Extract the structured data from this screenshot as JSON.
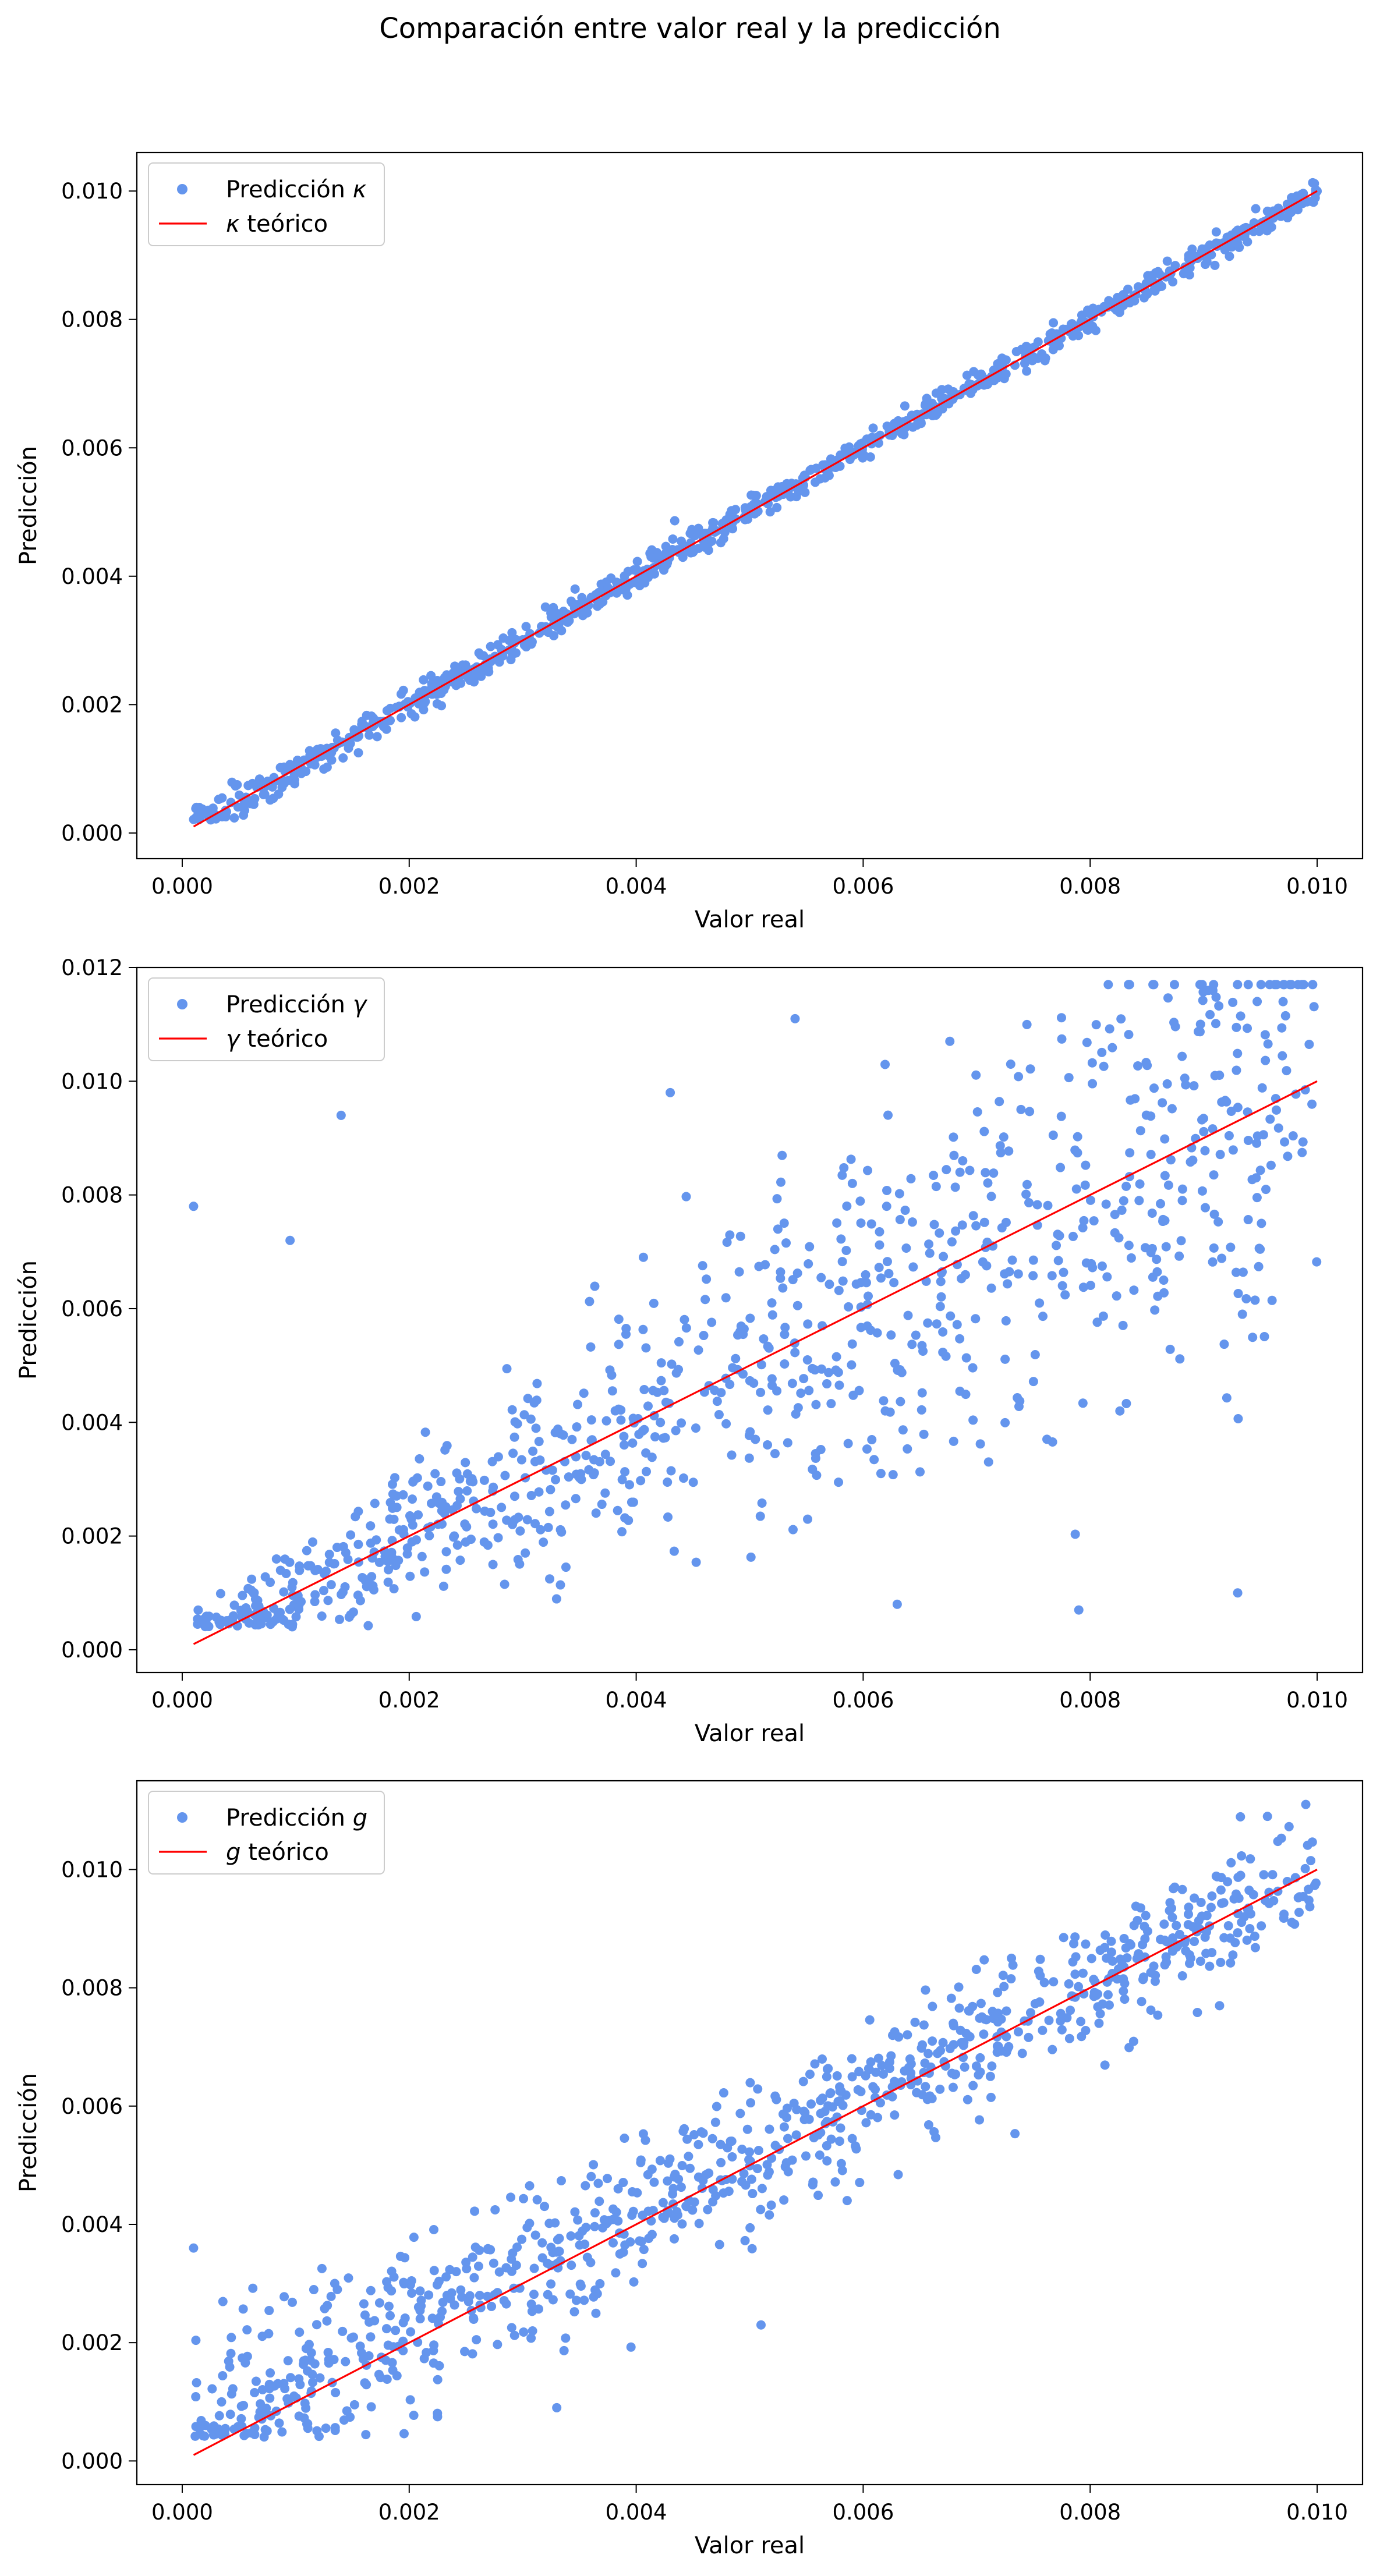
{
  "suptitle": "Comparación entre valor real y la predicción",
  "colors": {
    "points": "#6495ED",
    "line": "#FF0000"
  },
  "chart_data": [
    {
      "type": "scatter",
      "xlabel": "Valor real",
      "ylabel": "Predicción",
      "xlim": [
        -0.0004,
        0.0104
      ],
      "ylim": [
        -0.0004,
        0.0106
      ],
      "xticks": [
        "0.000",
        "0.002",
        "0.004",
        "0.006",
        "0.008",
        "0.010"
      ],
      "yticks": [
        "0.000",
        "0.002",
        "0.004",
        "0.006",
        "0.008",
        "0.010"
      ],
      "legend_position": "top-left",
      "series": [
        {
          "name": "Predicción κ",
          "legend_prefix": "Predicción ",
          "legend_symbol": "κ",
          "kind": "points",
          "generator": {
            "n": 900,
            "x_range": [
              0.0001,
              0.01
            ],
            "noise": [
              {
                "y": 0.0,
                "sd": 9e-05,
                "width": 4e-05
              }
            ],
            "outliers": [],
            "floor": 0.0002
          }
        },
        {
          "name": "κ teórico",
          "legend_prefix": "",
          "legend_symbol": "κ",
          "legend_suffix": " teórico",
          "kind": "line",
          "x": [
            0.0001,
            0.01
          ],
          "y": [
            0.0001,
            0.01
          ]
        }
      ]
    },
    {
      "type": "scatter",
      "xlabel": "Valor real",
      "ylabel": "Predicción",
      "xlim": [
        -0.0004,
        0.0104
      ],
      "ylim": [
        -0.0004,
        0.012
      ],
      "xticks": [
        "0.000",
        "0.002",
        "0.004",
        "0.006",
        "0.008",
        "0.010"
      ],
      "yticks": [
        "0.000",
        "0.002",
        "0.004",
        "0.006",
        "0.008",
        "0.010",
        "0.012"
      ],
      "legend_position": "top-left",
      "series": [
        {
          "name": "Predicción γ",
          "legend_prefix": "Predicción ",
          "legend_symbol": "γ",
          "kind": "points",
          "generator": {
            "n": 900,
            "x_range": [
              0.0001,
              0.01
            ],
            "noise": [
              {
                "y": 0.0,
                "sd": 0.0002,
                "width": 0.0016
              }
            ],
            "spread": 0.65,
            "outliers": [
              [
                0.0001,
                0.0078
              ],
              [
                0.00095,
                0.0072
              ],
              [
                0.0014,
                0.0094
              ],
              [
                0.0054,
                0.0111
              ],
              [
                0.0097,
                0.0114
              ],
              [
                0.0073,
                0.0103
              ],
              [
                0.0043,
                0.0098
              ],
              [
                0.0091,
                0.0101
              ],
              [
                0.0079,
                0.0007
              ],
              [
                0.0063,
                0.0008
              ],
              [
                0.0093,
                0.001
              ]
            ],
            "floor": 0.0004
          }
        },
        {
          "name": "γ teórico",
          "legend_prefix": "",
          "legend_symbol": "γ",
          "legend_suffix": " teórico",
          "kind": "line",
          "x": [
            0.0001,
            0.01
          ],
          "y": [
            0.0001,
            0.01
          ]
        }
      ]
    },
    {
      "type": "scatter",
      "xlabel": "Valor real",
      "ylabel": "Predicción",
      "xlim": [
        -0.0004,
        0.0104
      ],
      "ylim": [
        -0.0004,
        0.0115
      ],
      "xticks": [
        "0.000",
        "0.002",
        "0.004",
        "0.006",
        "0.008",
        "0.010"
      ],
      "yticks": [
        "0.000",
        "0.002",
        "0.004",
        "0.006",
        "0.008",
        "0.010"
      ],
      "legend_position": "top-left",
      "series": [
        {
          "name": "Predicción g",
          "legend_prefix": "Predicción ",
          "legend_symbol": "g",
          "kind": "points",
          "generator": {
            "n": 900,
            "x_range": [
              0.0001,
              0.01
            ],
            "noise": [
              {
                "y": 0.0,
                "sd": 0.00045,
                "width": 0.0004
              }
            ],
            "outliers": [
              [
                0.0001,
                0.0036
              ],
              [
                0.0099,
                0.0111
              ],
              [
                0.0051,
                0.0023
              ],
              [
                0.0059,
                0.0068
              ],
              [
                0.0033,
                0.0009
              ]
            ],
            "floor": 0.0004
          }
        },
        {
          "name": "g teórico",
          "legend_prefix": "",
          "legend_symbol": "g",
          "legend_suffix": " teórico",
          "kind": "line",
          "x": [
            0.0001,
            0.01
          ],
          "y": [
            0.0001,
            0.01
          ]
        }
      ]
    }
  ]
}
